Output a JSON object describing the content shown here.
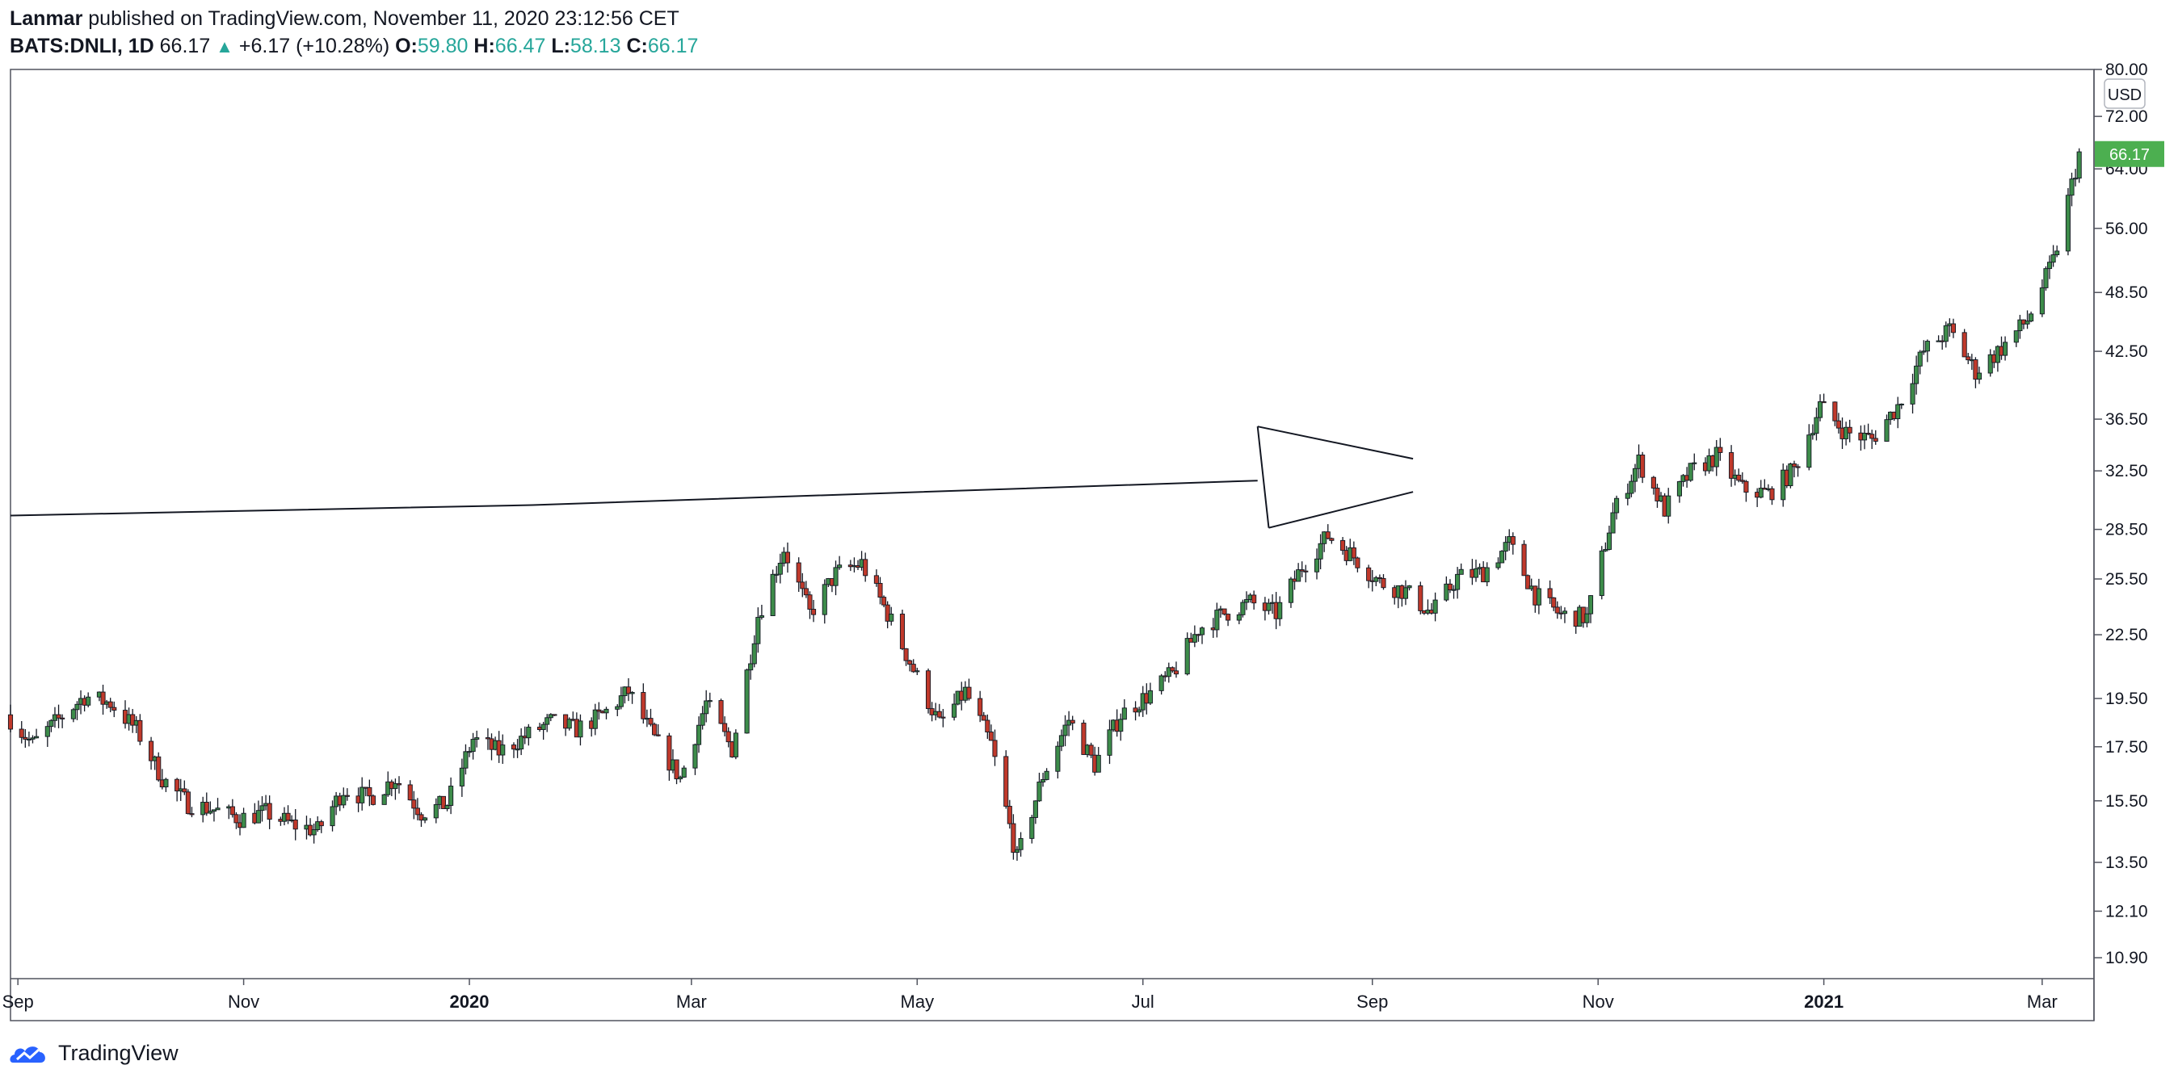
{
  "header": {
    "author": "Lanmar",
    "published_text": "published on TradingView.com, November 11, 2020 23:12:56 CET",
    "symbol": "BATS:DNLI, 1D",
    "last": "66.17",
    "change_arrow": "▲",
    "change": "+6.17 (+10.28%)",
    "o_label": "O:",
    "o_val": "59.80",
    "h_label": "H:",
    "h_val": "66.47",
    "l_label": "L:",
    "l_val": "58.13",
    "c_label": "C:",
    "c_val": "66.17"
  },
  "footer": {
    "brand": "TradingView",
    "logo_icon": "tradingview-cloud-icon"
  },
  "colors": {
    "up": "#26a69a",
    "down": "#c0392b",
    "up_candle": "#3d8c4a",
    "price_tag": "#4caf50"
  },
  "chart_data": {
    "type": "candlestick",
    "title": "",
    "currency": "USD",
    "y_scale": "log",
    "ylim": [
      10.4,
      80.0
    ],
    "y_ticks": [
      "80.00",
      "72.00",
      "64.00",
      "56.00",
      "48.50",
      "42.50",
      "36.50",
      "32.50",
      "28.50",
      "25.50",
      "22.50",
      "19.50",
      "17.50",
      "15.50",
      "13.50",
      "12.10",
      "10.90"
    ],
    "last_price_label": "66.17",
    "x_range": [
      "2019-08-30",
      "2021-03-15"
    ],
    "x_ticks": [
      {
        "label": "Sep",
        "date": "2019-09-01",
        "bold": false
      },
      {
        "label": "Nov",
        "date": "2019-11-01",
        "bold": false
      },
      {
        "label": "2020",
        "date": "2020-01-01",
        "bold": true
      },
      {
        "label": "Mar",
        "date": "2020-03-01",
        "bold": false
      },
      {
        "label": "May",
        "date": "2020-05-01",
        "bold": false
      },
      {
        "label": "Jul",
        "date": "2020-07-01",
        "bold": false
      },
      {
        "label": "Sep",
        "date": "2020-09-01",
        "bold": false
      },
      {
        "label": "Nov",
        "date": "2020-11-01",
        "bold": false
      },
      {
        "label": "2021",
        "date": "2021-01-01",
        "bold": true
      },
      {
        "label": "Mar",
        "date": "2021-03-01",
        "bold": false
      }
    ],
    "weekly_closes": [
      [
        "2019-08-30",
        18.8
      ],
      [
        "2019-09-06",
        17.6
      ],
      [
        "2019-09-13",
        18.6
      ],
      [
        "2019-09-20",
        19.6
      ],
      [
        "2019-09-27",
        19.3
      ],
      [
        "2019-10-04",
        18.2
      ],
      [
        "2019-10-11",
        16.3
      ],
      [
        "2019-10-18",
        15.4
      ],
      [
        "2019-10-25",
        15.2
      ],
      [
        "2019-11-01",
        14.9
      ],
      [
        "2019-11-08",
        15.1
      ],
      [
        "2019-11-15",
        14.7
      ],
      [
        "2019-11-22",
        14.5
      ],
      [
        "2019-11-29",
        15.9
      ],
      [
        "2019-12-06",
        15.6
      ],
      [
        "2019-12-13",
        16.3
      ],
      [
        "2019-12-20",
        15.1
      ],
      [
        "2019-12-27",
        15.4
      ],
      [
        "2020-01-03",
        17.8
      ],
      [
        "2020-01-10",
        17.3
      ],
      [
        "2020-01-17",
        17.9
      ],
      [
        "2020-01-24",
        18.5
      ],
      [
        "2020-01-31",
        18.2
      ],
      [
        "2020-02-07",
        18.8
      ],
      [
        "2020-02-14",
        19.8
      ],
      [
        "2020-02-21",
        17.8
      ],
      [
        "2020-02-28",
        16.3
      ],
      [
        "2020-03-06",
        19.3
      ],
      [
        "2020-03-13",
        17.4
      ],
      [
        "2020-03-20",
        23.5
      ],
      [
        "2020-03-27",
        27.3
      ],
      [
        "2020-04-03",
        23.6
      ],
      [
        "2020-04-10",
        25.8
      ],
      [
        "2020-04-17",
        26.4
      ],
      [
        "2020-04-24",
        23.6
      ],
      [
        "2020-05-01",
        20.8
      ],
      [
        "2020-05-08",
        18.4
      ],
      [
        "2020-05-15",
        19.8
      ],
      [
        "2020-05-22",
        17.6
      ],
      [
        "2020-05-29",
        13.6
      ],
      [
        "2020-06-05",
        16.4
      ],
      [
        "2020-06-12",
        18.6
      ],
      [
        "2020-06-19",
        16.8
      ],
      [
        "2020-06-26",
        18.8
      ],
      [
        "2020-07-03",
        19.6
      ],
      [
        "2020-07-10",
        20.6
      ],
      [
        "2020-07-17",
        22.8
      ],
      [
        "2020-07-24",
        23.6
      ],
      [
        "2020-07-31",
        24.2
      ],
      [
        "2020-08-07",
        23.6
      ],
      [
        "2020-08-14",
        26.2
      ],
      [
        "2020-08-21",
        28.1
      ],
      [
        "2020-08-28",
        26.8
      ],
      [
        "2020-09-04",
        25.3
      ],
      [
        "2020-09-11",
        24.8
      ],
      [
        "2020-09-18",
        23.6
      ],
      [
        "2020-09-25",
        25.6
      ],
      [
        "2020-10-02",
        25.9
      ],
      [
        "2020-10-09",
        27.6
      ],
      [
        "2020-10-16",
        24.6
      ],
      [
        "2020-10-23",
        23.5
      ],
      [
        "2020-10-30",
        23.4
      ],
      [
        "2020-11-06",
        29.5
      ],
      [
        "2020-11-13",
        33.2
      ],
      [
        "2020-11-20",
        29.8
      ],
      [
        "2020-11-27",
        32.4
      ],
      [
        "2020-12-04",
        33.6
      ],
      [
        "2020-12-11",
        31.2
      ],
      [
        "2020-12-18",
        30.9
      ],
      [
        "2020-12-25",
        32.6
      ],
      [
        "2021-01-01",
        37.6
      ],
      [
        "2021-01-08",
        35.4
      ],
      [
        "2021-01-15",
        34.9
      ],
      [
        "2021-01-22",
        37.6
      ],
      [
        "2021-01-29",
        42.5
      ],
      [
        "2021-02-05",
        44.6
      ],
      [
        "2021-02-12",
        40.6
      ],
      [
        "2021-02-19",
        42.8
      ],
      [
        "2021-02-26",
        45.6
      ],
      [
        "2021-03-05",
        52.0
      ],
      [
        "2021-03-12",
        66.17
      ]
    ],
    "drawings": [
      {
        "type": "trend_line",
        "points": [
          [
            "2019-08-30",
            29.4
          ],
          [
            "2020-01-18",
            30.1
          ],
          [
            "2020-08-01",
            31.8
          ]
        ]
      },
      {
        "type": "trend_line",
        "points": [
          [
            "2020-08-01",
            35.9
          ],
          [
            "2020-09-12",
            33.4
          ]
        ]
      },
      {
        "type": "trend_line",
        "points": [
          [
            "2020-08-04",
            28.6
          ],
          [
            "2020-09-12",
            31.0
          ]
        ]
      },
      {
        "type": "trend_line",
        "points": [
          [
            "2020-08-01",
            35.9
          ],
          [
            "2020-08-04",
            28.6
          ]
        ]
      }
    ]
  }
}
